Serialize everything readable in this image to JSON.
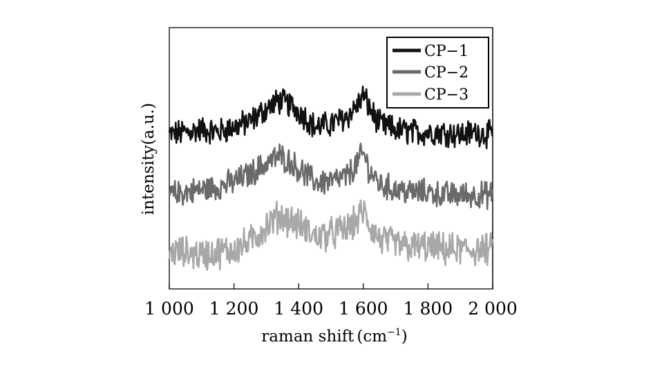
{
  "chart_data": {
    "type": "line",
    "title": "",
    "xlabel": "raman shift",
    "xlabel_unit": "(cm",
    "xlabel_unit_sup": "−1",
    "xlabel_unit_close": ")",
    "ylabel": "intensity(a.u.)",
    "xlim": [
      1000,
      2000
    ],
    "ylim": [
      0,
      10
    ],
    "x_ticks": [
      1000,
      1200,
      1400,
      1600,
      1800,
      2000
    ],
    "x_tick_labels": [
      "1 000",
      "1 200",
      "1 400",
      "1 600",
      "1 800",
      "2 000"
    ],
    "y_ticks": "none",
    "grid": false,
    "legend_position": "top-right",
    "x": [
      1000,
      1050,
      1100,
      1150,
      1200,
      1250,
      1300,
      1340,
      1380,
      1420,
      1450,
      1500,
      1550,
      1580,
      1600,
      1620,
      1650,
      1700,
      1750,
      1800,
      1850,
      1900,
      1950,
      2000
    ],
    "series": [
      {
        "name": "CP−1",
        "color": "#111111",
        "values": [
          5.9,
          6.0,
          6.1,
          6.0,
          6.2,
          6.4,
          6.9,
          7.2,
          7.0,
          6.6,
          6.2,
          6.3,
          6.6,
          7.0,
          7.4,
          6.9,
          6.3,
          6.1,
          6.0,
          6.0,
          6.0,
          5.9,
          6.0,
          5.9
        ]
      },
      {
        "name": "CP−2",
        "color": "#6a6a6a",
        "values": [
          3.6,
          3.7,
          3.8,
          3.9,
          4.1,
          4.4,
          4.8,
          5.1,
          4.8,
          4.4,
          4.1,
          4.1,
          4.3,
          4.8,
          5.2,
          4.5,
          4.0,
          3.8,
          3.7,
          3.7,
          3.6,
          3.6,
          3.6,
          3.6
        ]
      },
      {
        "name": "CP−3",
        "color": "#a8a8a8",
        "values": [
          1.4,
          1.4,
          1.3,
          1.4,
          1.5,
          1.8,
          2.4,
          2.8,
          2.6,
          2.3,
          2.0,
          2.1,
          2.3,
          2.6,
          3.0,
          2.4,
          1.9,
          1.7,
          1.6,
          1.6,
          1.5,
          1.5,
          1.5,
          1.5
        ]
      }
    ]
  }
}
